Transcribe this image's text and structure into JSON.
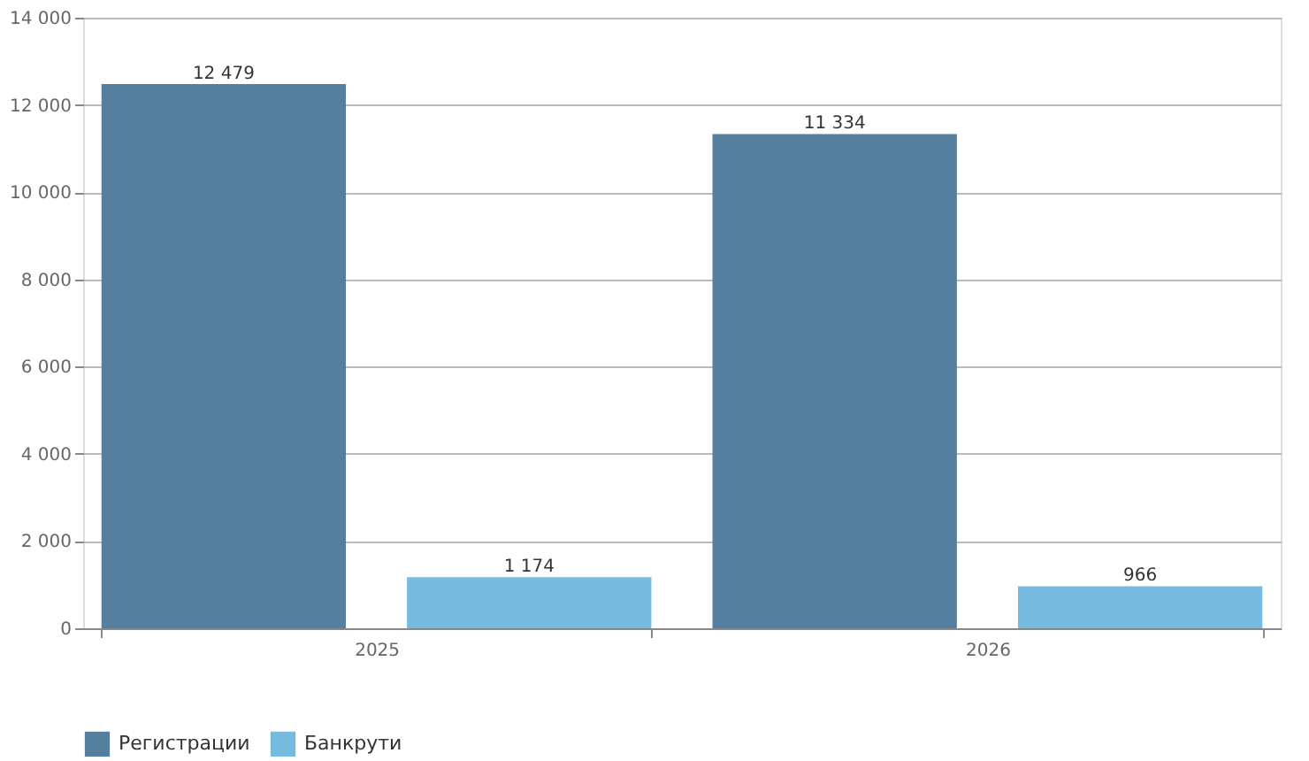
{
  "chart_data": {
    "type": "bar",
    "categories": [
      "2025",
      "2026"
    ],
    "series": [
      {
        "name": "Регистрации",
        "color": "#557f9e",
        "values": [
          12479,
          11334
        ],
        "value_labels": [
          "12 479",
          "11 334"
        ]
      },
      {
        "name": "Банкрути",
        "color": "#74bbdf",
        "values": [
          1174,
          966
        ],
        "value_labels": [
          "1 174",
          "966"
        ]
      }
    ],
    "ylim": [
      0,
      14000
    ],
    "yticks": [
      0,
      {
        "value": 2000,
        "label": "2 000"
      },
      {
        "value": 4000,
        "label": "4 000"
      },
      {
        "value": 6000,
        "label": "6 000"
      },
      {
        "value": 8000,
        "label": "8 000"
      },
      {
        "value": 10000,
        "label": "10 000"
      },
      {
        "value": 12000,
        "label": "12 000"
      },
      {
        "value": 14000,
        "label": "14 000"
      }
    ],
    "grid": "y",
    "legend": "bottom"
  }
}
